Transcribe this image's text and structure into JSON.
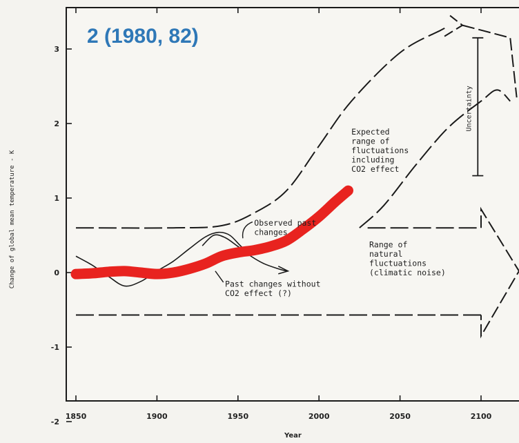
{
  "chart_data": {
    "type": "line",
    "title": "2 (1980, 82)",
    "xlabel": "Year",
    "ylabel": "Change of global mean temperature - K",
    "xlim": [
      1850,
      2125
    ],
    "ylim": [
      -2,
      3.4
    ],
    "x_ticks": [
      1850,
      1900,
      1950,
      2000,
      2050,
      2100
    ],
    "y_ticks": [
      -2,
      -1,
      0,
      1,
      2,
      3
    ],
    "grid": false,
    "series": [
      {
        "name": "Observed past changes",
        "style": "thin-solid",
        "points": [
          [
            1850,
            0.22
          ],
          [
            1860,
            0.1
          ],
          [
            1870,
            -0.05
          ],
          [
            1880,
            -0.18
          ],
          [
            1890,
            -0.12
          ],
          [
            1900,
            0.02
          ],
          [
            1910,
            0.15
          ],
          [
            1920,
            0.32
          ],
          [
            1930,
            0.48
          ],
          [
            1938,
            0.54
          ],
          [
            1945,
            0.5
          ],
          [
            1952,
            0.35
          ],
          [
            1958,
            0.26
          ],
          [
            1965,
            0.3
          ],
          [
            1972,
            0.4
          ]
        ]
      },
      {
        "name": "Past changes without CO2 effect (?)",
        "style": "thin-solid",
        "points": [
          [
            1928,
            0.36
          ],
          [
            1935,
            0.5
          ],
          [
            1942,
            0.47
          ],
          [
            1950,
            0.35
          ],
          [
            1958,
            0.22
          ],
          [
            1966,
            0.12
          ],
          [
            1975,
            0.05
          ],
          [
            1980,
            0.02
          ]
        ]
      },
      {
        "name": "Expected range of fluctuations including CO2 effect (upper bound)",
        "style": "dashed",
        "points": [
          [
            1850,
            0.6
          ],
          [
            1910,
            0.6
          ],
          [
            1940,
            0.63
          ],
          [
            1960,
            0.8
          ],
          [
            1980,
            1.1
          ],
          [
            2000,
            1.7
          ],
          [
            2020,
            2.3
          ],
          [
            2050,
            2.95
          ],
          [
            2075,
            3.25
          ],
          [
            2080,
            3.3
          ]
        ]
      },
      {
        "name": "Expected range of fluctuations including CO2 effect (lower bound)",
        "style": "dashed",
        "points": [
          [
            2025,
            0.6
          ],
          [
            2040,
            0.9
          ],
          [
            2060,
            1.45
          ],
          [
            2080,
            1.95
          ],
          [
            2100,
            2.3
          ],
          [
            2110,
            2.45
          ],
          [
            2118,
            2.3
          ]
        ]
      },
      {
        "name": "Range of natural fluctuations (upper)",
        "style": "dashed",
        "points": [
          [
            2030,
            0.6
          ],
          [
            2100,
            0.6
          ]
        ]
      },
      {
        "name": "Range of natural fluctuations (lower)",
        "style": "dashed",
        "points": [
          [
            1850,
            -0.57
          ],
          [
            2100,
            -0.57
          ]
        ]
      },
      {
        "name": "Observed temperature overlay",
        "style": "thick-red",
        "color": "#e8231f",
        "points": [
          [
            1850,
            -0.02
          ],
          [
            1860,
            -0.01
          ],
          [
            1870,
            0.01
          ],
          [
            1880,
            0.02
          ],
          [
            1890,
            0.0
          ],
          [
            1900,
            -0.02
          ],
          [
            1910,
            0.0
          ],
          [
            1920,
            0.05
          ],
          [
            1930,
            0.12
          ],
          [
            1940,
            0.22
          ],
          [
            1950,
            0.27
          ],
          [
            1960,
            0.3
          ],
          [
            1970,
            0.35
          ],
          [
            1980,
            0.43
          ],
          [
            1990,
            0.58
          ],
          [
            2000,
            0.75
          ],
          [
            2010,
            0.95
          ],
          [
            2018,
            1.1
          ]
        ]
      }
    ],
    "uncertainty_bar": {
      "label": "Uncertainty",
      "x": 2098,
      "low": 1.3,
      "high": 3.15
    },
    "annotations": [
      {
        "lines": [
          "Expected",
          "range of",
          "fluctuations",
          "including",
          "CO2 effect"
        ],
        "x": 2020,
        "y": 1.85
      },
      {
        "lines": [
          "Range of",
          "natural",
          "fluctuations",
          "(climatic noise)"
        ],
        "x": 2031,
        "y": 0.34
      },
      {
        "lines": [
          "Observed past",
          "changes"
        ],
        "x": 1960,
        "y": 0.63
      },
      {
        "lines": [
          "Past changes without",
          "CO2 effect (?)"
        ],
        "x": 1942,
        "y": -0.19
      }
    ]
  }
}
